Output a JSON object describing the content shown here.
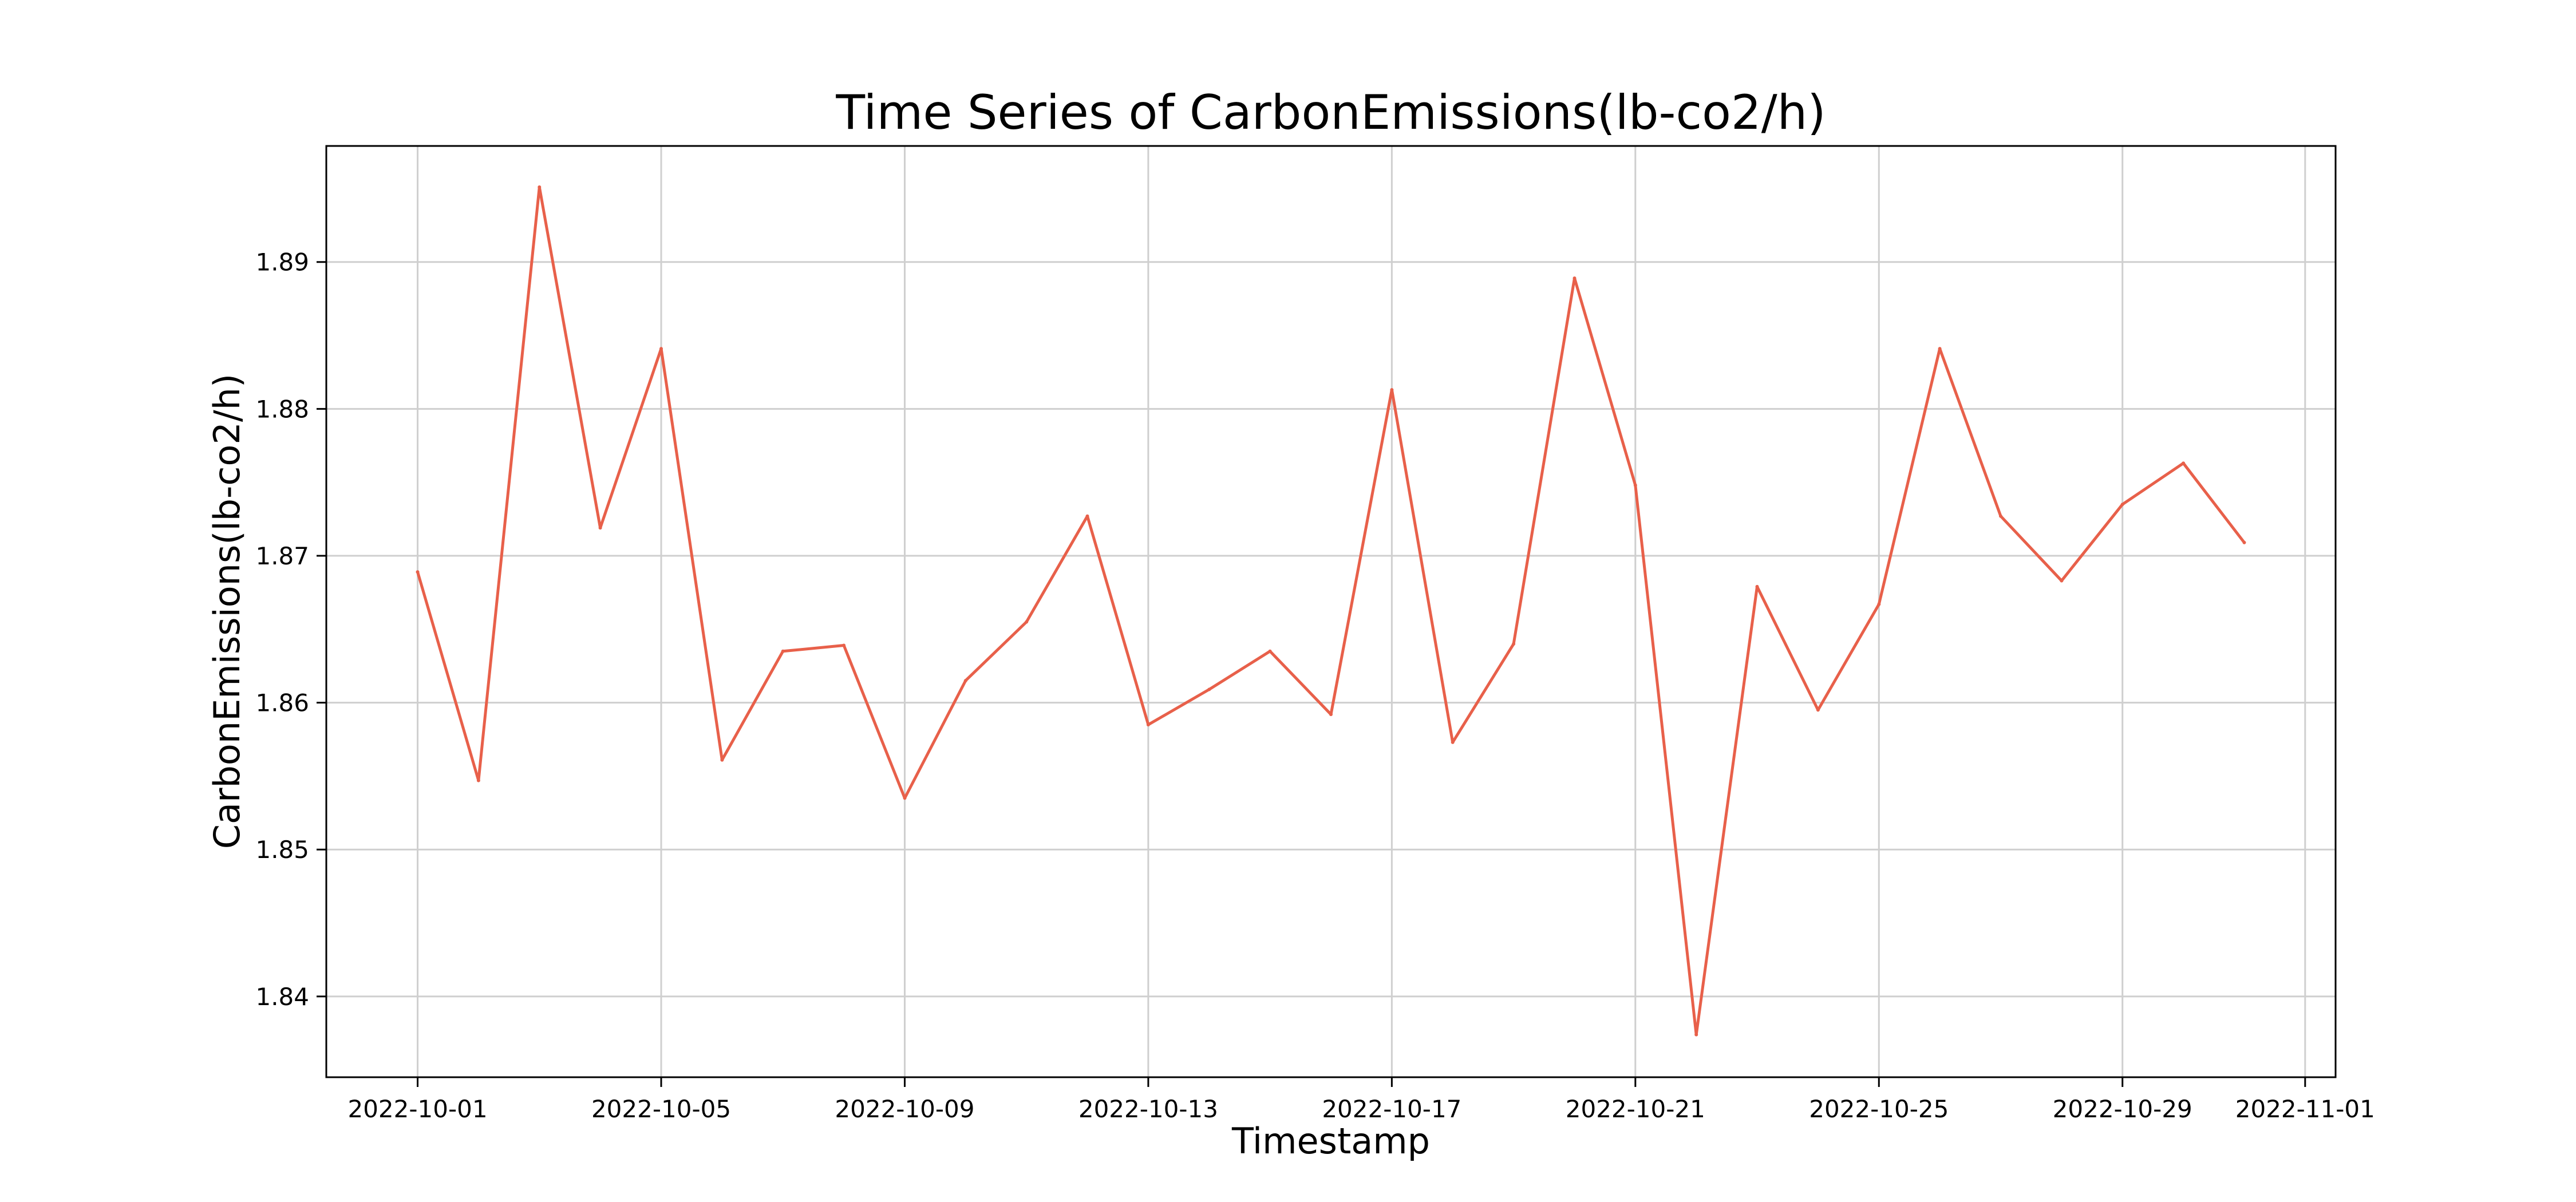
{
  "chart_data": {
    "type": "line",
    "title": "Time Series of CarbonEmissions(lb-co2/h)",
    "xlabel": "Timestamp",
    "ylabel": "CarbonEmissions(lb-co2/h)",
    "grid": true,
    "xlim": [
      "2022-09-29T12:00",
      "2022-11-01T12:00"
    ],
    "ylim": [
      1.8345,
      1.8979
    ],
    "xticks": [
      "2022-10-01",
      "2022-10-05",
      "2022-10-09",
      "2022-10-13",
      "2022-10-17",
      "2022-10-21",
      "2022-10-25",
      "2022-10-29",
      "2022-11-01"
    ],
    "yticks": [
      "1.84",
      "1.85",
      "1.86",
      "1.87",
      "1.88",
      "1.89"
    ],
    "line_color": "#e8604a",
    "series": [
      {
        "x": [
          "2022-10-01",
          "2022-10-02",
          "2022-10-03",
          "2022-10-04",
          "2022-10-05",
          "2022-10-06",
          "2022-10-07",
          "2022-10-08",
          "2022-10-09",
          "2022-10-10",
          "2022-10-11",
          "2022-10-12",
          "2022-10-13",
          "2022-10-14",
          "2022-10-15",
          "2022-10-16",
          "2022-10-17",
          "2022-10-18",
          "2022-10-19",
          "2022-10-20",
          "2022-10-21",
          "2022-10-22",
          "2022-10-23",
          "2022-10-24",
          "2022-10-25",
          "2022-10-26",
          "2022-10-27",
          "2022-10-28",
          "2022-10-29",
          "2022-10-30",
          "2022-10-31"
        ],
        "values": [
          1.8689,
          1.8547,
          1.8951,
          1.8719,
          1.8841,
          1.8561,
          1.8635,
          1.8639,
          1.8535,
          1.8615,
          1.8655,
          1.8727,
          1.8585,
          1.8609,
          1.8635,
          1.8592,
          1.8813,
          1.8573,
          1.864,
          1.8889,
          1.8748,
          1.8374,
          1.8679,
          1.8595,
          1.8667,
          1.8841,
          1.8727,
          1.8683,
          1.8735,
          1.8763,
          1.8709
        ]
      }
    ]
  }
}
